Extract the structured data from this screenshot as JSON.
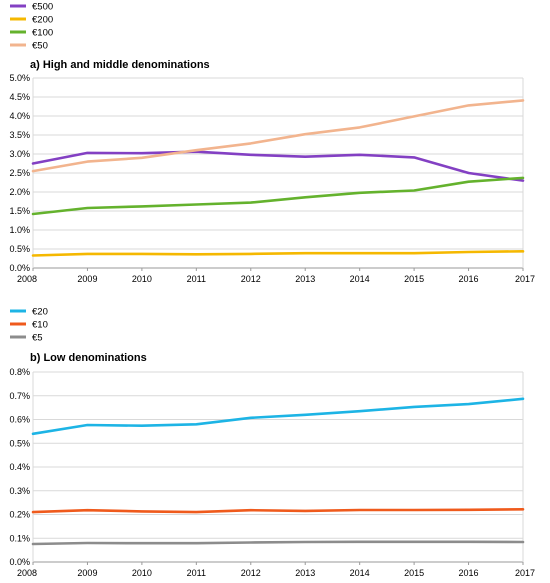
{
  "chart_data": [
    {
      "type": "line",
      "title": "a) High and middle denominations",
      "x": [
        2008,
        2009,
        2010,
        2011,
        2012,
        2013,
        2014,
        2015,
        2016,
        2017
      ],
      "x_tick_labels": [
        "2008",
        "2009",
        "2010",
        "2011",
        "2012",
        "2013",
        "2014",
        "2015",
        "2016",
        "2017"
      ],
      "ylim": [
        0,
        5.0
      ],
      "y_ticks": [
        0,
        0.5,
        1.0,
        1.5,
        2.0,
        2.5,
        3.0,
        3.5,
        4.0,
        4.5,
        5.0
      ],
      "y_tick_labels": [
        "0.0%",
        "0.5%",
        "1.0%",
        "1.5%",
        "2.0%",
        "2.5%",
        "3.0%",
        "3.5%",
        "4.0%",
        "4.5%",
        "5.0%"
      ],
      "grid": true,
      "legend": "top-left",
      "series": [
        {
          "name": "€500",
          "color": "#8340c3",
          "values": [
            2.75,
            3.03,
            3.02,
            3.06,
            2.98,
            2.93,
            2.98,
            2.91,
            2.5,
            2.3
          ]
        },
        {
          "name": "€200",
          "color": "#f5b800",
          "values": [
            0.33,
            0.37,
            0.37,
            0.36,
            0.37,
            0.39,
            0.39,
            0.39,
            0.42,
            0.44
          ]
        },
        {
          "name": "€100",
          "color": "#64b22d",
          "values": [
            1.42,
            1.58,
            1.62,
            1.67,
            1.72,
            1.86,
            1.98,
            2.04,
            2.27,
            2.37
          ]
        },
        {
          "name": "€50",
          "color": "#f2b48e",
          "values": [
            2.55,
            2.8,
            2.9,
            3.1,
            3.28,
            3.52,
            3.7,
            3.99,
            4.28,
            4.41
          ]
        }
      ]
    },
    {
      "type": "line",
      "title": "b) Low denominations",
      "x": [
        2008,
        2009,
        2010,
        2011,
        2012,
        2013,
        2014,
        2015,
        2016,
        2017
      ],
      "x_tick_labels": [
        "2008",
        "2009",
        "2010",
        "2011",
        "2012",
        "2013",
        "2014",
        "2015",
        "2016",
        "2017"
      ],
      "ylim": [
        0,
        0.8
      ],
      "y_ticks": [
        0,
        0.1,
        0.2,
        0.3,
        0.4,
        0.5,
        0.6,
        0.7,
        0.8
      ],
      "y_tick_labels": [
        "0.0%",
        "0.1%",
        "0.2%",
        "0.3%",
        "0.4%",
        "0.5%",
        "0.6%",
        "0.7%",
        "0.8%"
      ],
      "grid": true,
      "legend": "top-left",
      "series": [
        {
          "name": "€20",
          "color": "#1db4e5",
          "values": [
            0.54,
            0.577,
            0.574,
            0.58,
            0.607,
            0.62,
            0.635,
            0.653,
            0.665,
            0.687
          ]
        },
        {
          "name": "€10",
          "color": "#ef5a1c",
          "values": [
            0.21,
            0.218,
            0.213,
            0.21,
            0.218,
            0.215,
            0.219,
            0.219,
            0.22,
            0.222
          ]
        },
        {
          "name": "€5",
          "color": "#8c8c8c",
          "values": [
            0.076,
            0.08,
            0.079,
            0.079,
            0.082,
            0.084,
            0.085,
            0.085,
            0.085,
            0.084
          ]
        }
      ]
    }
  ]
}
